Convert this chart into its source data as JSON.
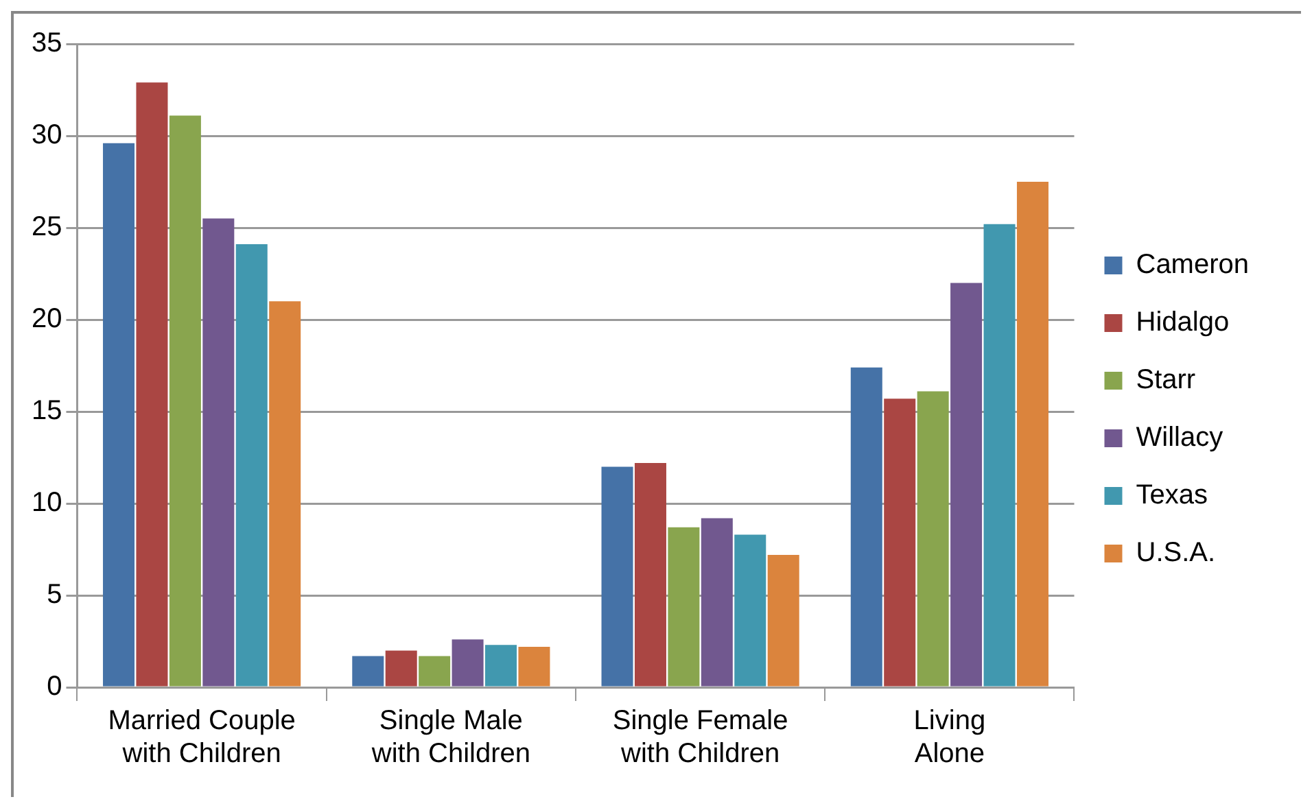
{
  "chart_data": {
    "type": "bar",
    "categories": [
      "Married Couple with Children",
      "Single Male with Children",
      "Single Female with Children",
      "Living Alone"
    ],
    "series": [
      {
        "name": "Cameron",
        "color": "#4572a7",
        "values": [
          29.6,
          1.7,
          12.0,
          17.4
        ]
      },
      {
        "name": "Hidalgo",
        "color": "#aa4643",
        "values": [
          32.9,
          2.0,
          12.2,
          15.7
        ]
      },
      {
        "name": "Starr",
        "color": "#89a54e",
        "values": [
          31.1,
          1.7,
          8.7,
          16.1
        ]
      },
      {
        "name": "Willacy",
        "color": "#71588f",
        "values": [
          25.5,
          2.6,
          9.2,
          22.0
        ]
      },
      {
        "name": "Texas",
        "color": "#4198af",
        "values": [
          24.1,
          2.3,
          8.3,
          25.2
        ]
      },
      {
        "name": "U.S.A.",
        "color": "#db843d",
        "values": [
          21.0,
          2.2,
          7.2,
          27.5
        ]
      }
    ],
    "ylim": [
      0,
      35
    ],
    "yticks": [
      0,
      5,
      10,
      15,
      20,
      25,
      30,
      35
    ],
    "grid": "y",
    "legend": "right"
  }
}
